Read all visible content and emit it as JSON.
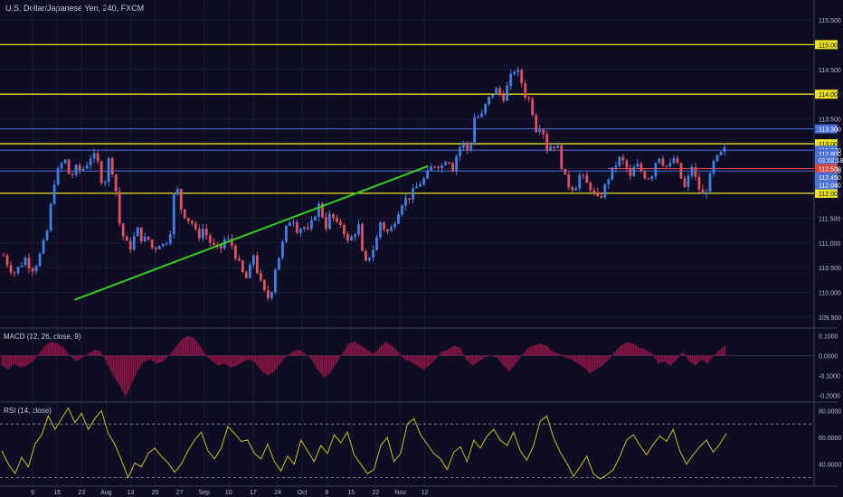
{
  "header": {
    "title": "U.S. Dollar/Japanese Yen, 240, FXCM"
  },
  "colors": {
    "background": "#0e0d24",
    "grid": "#1b1a38",
    "up_candle": "#3d7fe3",
    "down_candle": "#e0505e",
    "support_resistance": "#e9e21c",
    "trendline": "#31d11e",
    "blue_level": "#4a6fd6",
    "red_level": "#d9463f",
    "macd_hist": "#8a1545",
    "rsi_line": "#c6c21a",
    "axis_text": "#b8bcc8"
  },
  "chart_data": [
    {
      "type": "candlestick",
      "title": "U.S. Dollar/Japanese Yen, 240, FXCM",
      "ylim": [
        109.3,
        115.9
      ],
      "y_ticks": [
        "115.500",
        "115.000",
        "114.500",
        "114.000",
        "113.500",
        "113.000",
        "112.500",
        "112.000",
        "111.500",
        "111.000",
        "110.500",
        "110.000",
        "109.500"
      ],
      "x_ticks": [
        "9",
        "16",
        "23",
        "Aug",
        "13",
        "20",
        "27",
        "Sep",
        "10",
        "17",
        "24",
        "Oct",
        "8",
        "15",
        "22",
        "Nov",
        "12"
      ],
      "close_path": [
        110.75,
        110.5,
        110.4,
        110.55,
        110.7,
        110.45,
        110.6,
        110.9,
        111.3,
        112.2,
        112.5,
        112.7,
        112.3,
        112.5,
        112.45,
        112.6,
        112.8,
        112.6,
        112.1,
        112.7,
        112.3,
        111.3,
        111.0,
        110.9,
        111.3,
        111.05,
        111.1,
        110.85,
        111.0,
        110.95,
        111.2,
        112.25,
        111.7,
        111.5,
        111.4,
        111.1,
        111.3,
        111.05,
        110.9,
        110.85,
        111.1,
        111.0,
        110.7,
        110.4,
        110.25,
        110.8,
        110.3,
        110.0,
        109.85,
        110.5,
        110.85,
        111.3,
        111.55,
        111.25,
        111.35,
        111.2,
        111.55,
        111.8,
        111.3,
        111.6,
        111.35,
        111.4,
        111.0,
        111.15,
        111.35,
        110.5,
        110.75,
        110.95,
        111.45,
        111.2,
        111.3,
        111.6,
        111.85,
        111.9,
        112.05,
        112.2,
        112.3,
        112.5,
        112.6,
        112.55,
        112.75,
        112.5,
        112.9,
        113.0,
        112.8,
        113.6,
        113.5,
        113.8,
        114.0,
        114.1,
        113.9,
        114.2,
        114.5,
        114.4,
        114.0,
        113.85,
        113.3,
        113.4,
        112.9,
        113.0,
        112.9,
        112.35,
        112.15,
        112.1,
        112.4,
        112.2,
        112.1,
        111.85,
        112.0,
        112.3,
        112.5,
        112.7,
        112.6,
        112.3,
        112.6,
        112.45,
        112.3,
        112.4,
        112.8,
        112.6,
        112.5,
        112.75,
        112.35,
        112.05,
        112.6,
        112.2,
        111.95,
        112.15,
        112.6,
        112.75,
        112.87
      ],
      "levels": [
        {
          "value": 115.0,
          "label": "115.000",
          "kind": "yellow"
        },
        {
          "value": 114.0,
          "label": "114.000",
          "kind": "yellow"
        },
        {
          "value": 113.3,
          "label": "113.300",
          "kind": "blue"
        },
        {
          "value": 113.0,
          "label": "113.000",
          "kind": "yellow"
        },
        {
          "value": 112.87,
          "label": "112.870",
          "kind": "blue"
        },
        {
          "value": 112.45,
          "label": "112.450",
          "kind": "blue"
        },
        {
          "value": 112.0,
          "label": "112.000",
          "kind": "yellow"
        }
      ],
      "badges": [
        {
          "value": 112.8,
          "label": "112.800",
          "kind": "blue"
        },
        {
          "value": 112.67,
          "label": "01:02:18",
          "kind": "blue"
        },
        {
          "value": 112.5,
          "label": "112.500",
          "kind": "red"
        },
        {
          "value": 112.33,
          "label": "112.450",
          "kind": "blue"
        },
        {
          "value": 112.17,
          "label": "112.040",
          "kind": "blue"
        }
      ],
      "trendline": {
        "start": {
          "x": "Jul 21",
          "y": 109.85
        },
        "end": {
          "x": "Oct 30",
          "y": 112.55
        }
      }
    },
    {
      "type": "bar",
      "title": "MACD (12, 26, close, 9)",
      "ylim": [
        -0.23,
        0.13
      ],
      "y_ticks": [
        "0.1000",
        "0.0000",
        "-0.1000",
        "-0.2000"
      ],
      "histogram_path": [
        -0.05,
        -0.07,
        -0.04,
        -0.06,
        -0.05,
        -0.03,
        0.01,
        0.05,
        0.07,
        0.06,
        0.04,
        0.0,
        -0.03,
        -0.01,
        0.01,
        0.03,
        0.02,
        -0.04,
        -0.1,
        -0.15,
        -0.21,
        -0.14,
        -0.07,
        -0.03,
        -0.02,
        -0.04,
        -0.03,
        0.0,
        0.04,
        0.08,
        0.1,
        0.09,
        0.05,
        0.0,
        -0.03,
        -0.05,
        -0.04,
        -0.06,
        -0.05,
        -0.03,
        -0.02,
        -0.04,
        -0.08,
        -0.1,
        -0.08,
        -0.04,
        0.0,
        0.02,
        0.03,
        0.01,
        -0.02,
        -0.07,
        -0.11,
        -0.09,
        -0.04,
        0.01,
        0.06,
        0.07,
        0.05,
        0.03,
        0.01,
        0.04,
        0.07,
        0.05,
        0.02,
        -0.02,
        -0.03,
        -0.05,
        -0.07,
        -0.05,
        -0.02,
        0.02,
        0.03,
        0.05,
        0.04,
        -0.02,
        -0.05,
        -0.03,
        -0.01,
        0.0,
        -0.01,
        -0.05,
        -0.08,
        -0.04,
        0.0,
        0.04,
        0.05,
        0.06,
        0.05,
        0.02,
        0.01,
        -0.01,
        -0.02,
        -0.04,
        -0.06,
        -0.09,
        -0.07,
        -0.05,
        -0.02,
        0.02,
        0.05,
        0.07,
        0.06,
        0.04,
        0.03,
        0.01,
        -0.04,
        -0.03,
        -0.05,
        -0.02,
        0.02,
        -0.03,
        -0.05,
        -0.02,
        -0.04,
        0.0,
        0.03,
        0.06
      ]
    },
    {
      "type": "line",
      "title": "RSI (14, close)",
      "ylim": [
        27,
        85
      ],
      "y_ticks": [
        "80.0000",
        "60.0000",
        "40.0000"
      ],
      "bands": [
        70,
        30
      ],
      "path": [
        50,
        40,
        33,
        45,
        38,
        55,
        62,
        76,
        66,
        74,
        82,
        71,
        78,
        66,
        74,
        80,
        63,
        55,
        43,
        30,
        41,
        38,
        48,
        52,
        46,
        41,
        34,
        40,
        50,
        58,
        64,
        50,
        44,
        52,
        68,
        63,
        57,
        58,
        48,
        44,
        55,
        42,
        35,
        46,
        40,
        58,
        50,
        42,
        54,
        48,
        62,
        56,
        64,
        47,
        40,
        33,
        36,
        54,
        60,
        42,
        48,
        70,
        74,
        62,
        55,
        48,
        44,
        36,
        49,
        53,
        42,
        58,
        52,
        61,
        66,
        58,
        54,
        64,
        50,
        43,
        54,
        72,
        76,
        60,
        49,
        41,
        31,
        38,
        46,
        33,
        29,
        32,
        36,
        46,
        58,
        62,
        54,
        47,
        55,
        61,
        57,
        66,
        50,
        40,
        47,
        53,
        58,
        49,
        55,
        63
      ]
    }
  ]
}
